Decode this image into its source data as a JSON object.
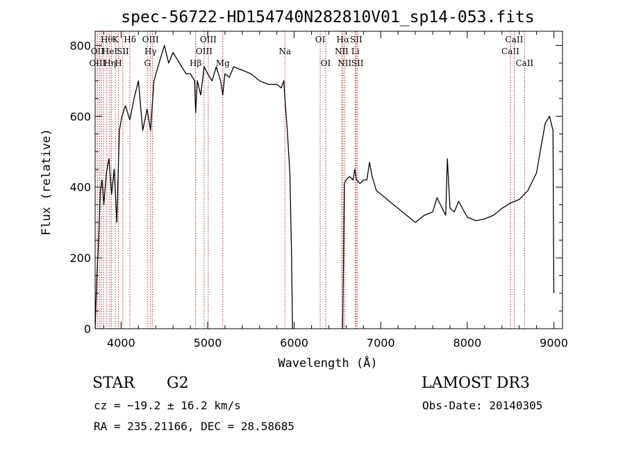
{
  "chart_data": {
    "type": "line",
    "title": "spec-56722-HD154740N282810V01_sp14-053.fits",
    "xlabel": "Wavelength (Å)",
    "ylabel": "Flux (relative)",
    "xlim": [
      3700,
      9100
    ],
    "ylim": [
      0,
      840
    ],
    "x_ticks": [
      4000,
      5000,
      6000,
      7000,
      8000,
      9000
    ],
    "y_ticks": [
      0,
      200,
      400,
      600,
      800
    ],
    "x_tick_labels": [
      "4000",
      "5000",
      "6000",
      "7000",
      "8000",
      "9000"
    ],
    "y_tick_labels": [
      "0",
      "200",
      "400",
      "600",
      "800"
    ],
    "grid": false,
    "line_color": "#000000",
    "marker_color": "#b22222",
    "series": [
      {
        "x": [
          3700,
          3720,
          3740,
          3760,
          3780,
          3800,
          3830,
          3860,
          3890,
          3920,
          3950,
          3980,
          4010,
          4050,
          4100,
          4150,
          4200,
          4250,
          4300,
          4340,
          4380,
          4450,
          4500,
          4550,
          4600,
          4650,
          4700,
          4750,
          4800,
          4850,
          4861,
          4880,
          4920,
          4960,
          5000,
          5050,
          5100,
          5150,
          5175,
          5200,
          5250,
          5300,
          5400,
          5500,
          5600,
          5700,
          5800,
          5850,
          5880,
          5893,
          5920,
          5950,
          5970,
          5980
        ],
        "y": [
          0,
          150,
          250,
          390,
          420,
          350,
          440,
          480,
          380,
          450,
          300,
          560,
          600,
          630,
          590,
          650,
          700,
          560,
          620,
          560,
          700,
          760,
          800,
          750,
          780,
          760,
          740,
          720,
          720,
          700,
          610,
          700,
          660,
          740,
          720,
          700,
          740,
          700,
          660,
          720,
          710,
          740,
          730,
          720,
          700,
          690,
          690,
          680,
          700,
          650,
          560,
          440,
          200,
          0
        ]
      },
      {
        "x": [
          6560,
          6570,
          6580,
          6600,
          6640,
          6680,
          6700,
          6720,
          6760,
          6800,
          6840,
          6870,
          6900,
          6950,
          7000,
          7100,
          7200,
          7300,
          7400,
          7500,
          7600,
          7650,
          7700,
          7750,
          7770,
          7800,
          7850,
          7900,
          8000,
          8100,
          8200,
          8300,
          8400,
          8500,
          8600,
          8700,
          8800,
          8850,
          8900,
          8950,
          8990,
          9000
        ],
        "y": [
          0,
          200,
          410,
          420,
          430,
          420,
          450,
          420,
          410,
          420,
          420,
          470,
          430,
          390,
          380,
          360,
          340,
          320,
          300,
          320,
          330,
          370,
          345,
          320,
          480,
          340,
          330,
          360,
          315,
          305,
          310,
          320,
          340,
          355,
          365,
          390,
          440,
          510,
          580,
          600,
          560,
          100
        ]
      }
    ],
    "line_markers": [
      {
        "wavelength": 3727,
        "labels": [
          {
            "text": "OII",
            "row": 2
          },
          {
            "text": "OIII",
            "row": 3
          }
        ]
      },
      {
        "wavelength": 3750,
        "labels": []
      },
      {
        "wavelength": 3771,
        "labels": []
      },
      {
        "wavelength": 3798,
        "labels": []
      },
      {
        "wavelength": 3835,
        "labels": [
          {
            "text": "Hθ",
            "row": 1
          }
        ]
      },
      {
        "wavelength": 3869,
        "labels": [
          {
            "text": "HeI",
            "row": 2
          },
          {
            "text": "Hη",
            "row": 3
          }
        ]
      },
      {
        "wavelength": 3889,
        "labels": []
      },
      {
        "wavelength": 3934,
        "labels": [
          {
            "text": "K",
            "row": 1
          }
        ]
      },
      {
        "wavelength": 3969,
        "labels": [
          {
            "text": "H",
            "row": 3
          }
        ]
      },
      {
        "wavelength": 4020,
        "labels": [
          {
            "text": "SII",
            "row": 2
          }
        ]
      },
      {
        "wavelength": 4102,
        "labels": [
          {
            "text": "Hδ",
            "row": 1
          }
        ]
      },
      {
        "wavelength": 4304,
        "labels": [
          {
            "text": "G",
            "row": 3
          }
        ]
      },
      {
        "wavelength": 4340,
        "labels": [
          {
            "text": "OIII",
            "row": 1
          },
          {
            "text": "Hγ",
            "row": 2
          }
        ]
      },
      {
        "wavelength": 4363,
        "labels": []
      },
      {
        "wavelength": 4861,
        "labels": [
          {
            "text": "Hβ",
            "row": 3
          }
        ]
      },
      {
        "wavelength": 4959,
        "labels": [
          {
            "text": "OIII",
            "row": 2
          }
        ]
      },
      {
        "wavelength": 5007,
        "labels": [
          {
            "text": "OIII",
            "row": 1
          }
        ]
      },
      {
        "wavelength": 5175,
        "labels": [
          {
            "text": "Mg",
            "row": 3
          }
        ]
      },
      {
        "wavelength": 5893,
        "labels": [
          {
            "text": "Na",
            "row": 2
          }
        ]
      },
      {
        "wavelength": 6300,
        "labels": [
          {
            "text": "OI",
            "row": 1
          }
        ]
      },
      {
        "wavelength": 6364,
        "labels": [
          {
            "text": "OI",
            "row": 3
          }
        ]
      },
      {
        "wavelength": 6548,
        "labels": [
          {
            "text": "NII",
            "row": 2
          }
        ]
      },
      {
        "wavelength": 6563,
        "labels": [
          {
            "text": "Hα",
            "row": 1
          }
        ]
      },
      {
        "wavelength": 6583,
        "labels": [
          {
            "text": "NII",
            "row": 3
          }
        ]
      },
      {
        "wavelength": 6707,
        "labels": [
          {
            "text": "Li",
            "row": 2
          }
        ]
      },
      {
        "wavelength": 6716,
        "labels": [
          {
            "text": "SII",
            "row": 1
          }
        ]
      },
      {
        "wavelength": 6731,
        "labels": [
          {
            "text": "SII",
            "row": 3
          }
        ]
      },
      {
        "wavelength": 8498,
        "labels": [
          {
            "text": "CaII",
            "row": 2
          }
        ]
      },
      {
        "wavelength": 8542,
        "labels": [
          {
            "text": "CaII",
            "row": 1
          }
        ]
      },
      {
        "wavelength": 8662,
        "labels": [
          {
            "text": "CaII",
            "row": 3
          }
        ]
      }
    ]
  },
  "info": {
    "object_class": "STAR",
    "subclass": "G2",
    "survey": "LAMOST DR3",
    "cz": "cz = −19.2 ± 16.2 km/s",
    "obs_date": "Obs-Date: 20140305",
    "coords": "RA = 235.21166, DEC =  28.58685"
  }
}
